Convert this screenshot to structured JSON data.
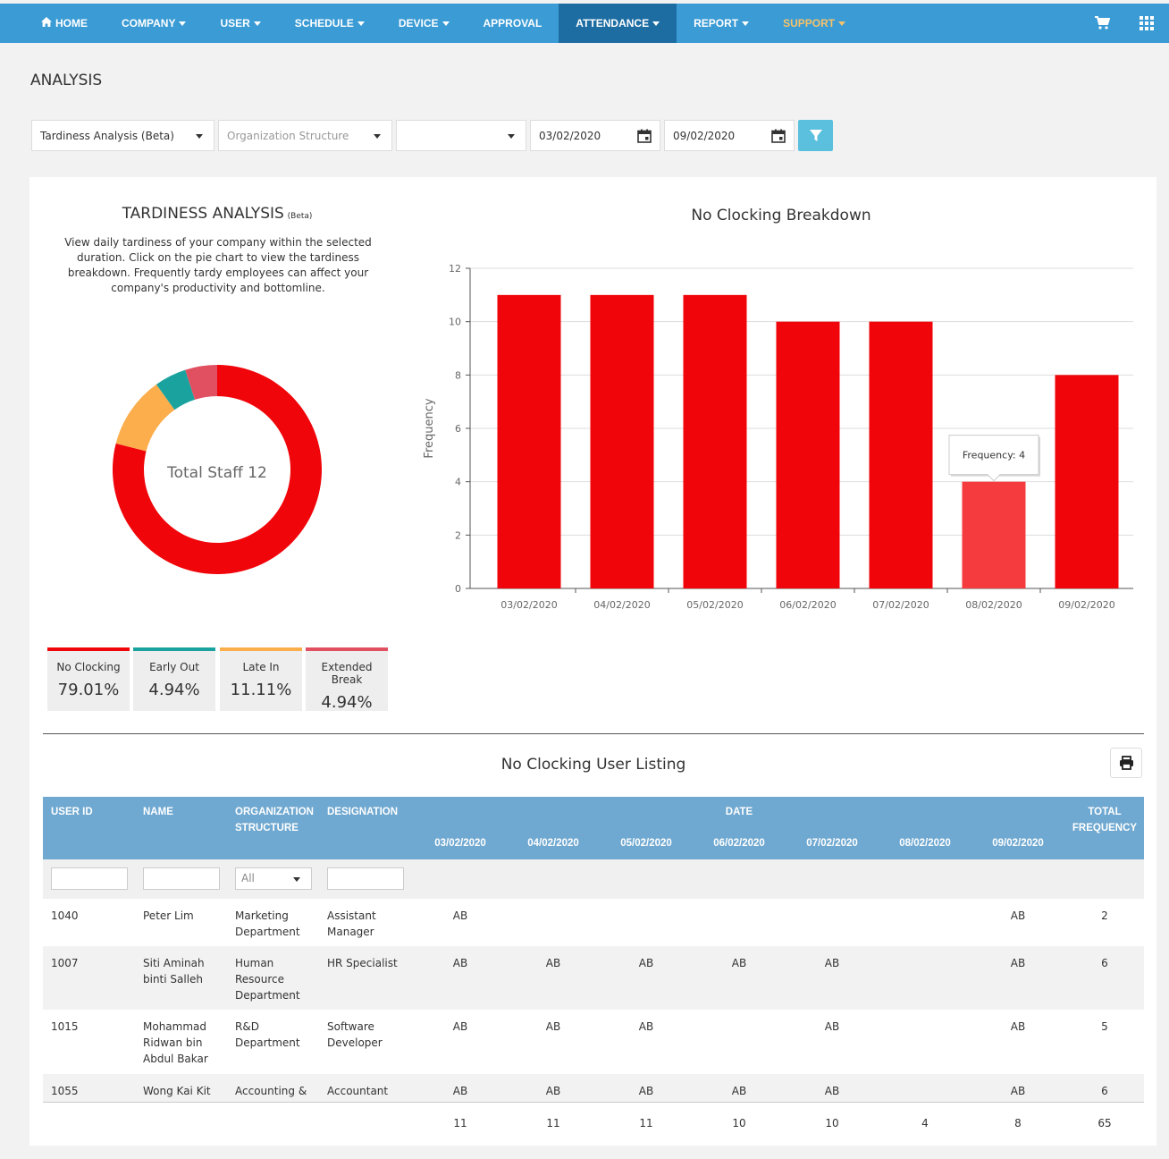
{
  "nav": {
    "items": [
      {
        "label": "HOME",
        "icon": "home-icon"
      },
      {
        "label": "COMPANY",
        "caret": true
      },
      {
        "label": "USER",
        "caret": true
      },
      {
        "label": "SCHEDULE",
        "caret": true
      },
      {
        "label": "DEVICE",
        "caret": true
      },
      {
        "label": "APPROVAL",
        "caret": false
      },
      {
        "label": "ATTENDANCE",
        "caret": true,
        "active": true
      },
      {
        "label": "REPORT",
        "caret": true
      },
      {
        "label": "SUPPORT",
        "caret": true
      }
    ],
    "right_icons": [
      "cart-icon",
      "apps-grid-icon"
    ]
  },
  "page_title": "ANALYSIS",
  "filters": {
    "analysis_type": "Tardiness Analysis (Beta)",
    "org_structure_placeholder": "Organization Structure",
    "third_select": "",
    "date_from": "03/02/2020",
    "date_to": "09/02/2020"
  },
  "tardiness": {
    "title": "TARDINESS ANALYSIS",
    "beta": "(Beta)",
    "description": "View daily tardiness of your company within the selected duration. Click on the pie chart to view the tardiness breakdown. Frequently tardy employees can affect your company's productivity and bottomline.",
    "donut_center": "Total Staff 12",
    "legend": [
      {
        "label": "No Clocking",
        "pct": "79.01%",
        "color": "#f0050a"
      },
      {
        "label": "Early Out",
        "pct": "4.94%",
        "color": "#1aa39e"
      },
      {
        "label": "Late In",
        "pct": "11.11%",
        "color": "#fbae4b"
      },
      {
        "label": "Extended Break",
        "pct": "4.94%",
        "color": "#e05060"
      }
    ]
  },
  "chart_data": [
    {
      "type": "pie",
      "categories": [
        "No Clocking",
        "Late In",
        "Early Out",
        "Extended Break"
      ],
      "values": [
        79.01,
        11.11,
        4.94,
        4.94
      ],
      "colors": [
        "#f0050a",
        "#fbae4b",
        "#1aa39e",
        "#e05060"
      ],
      "center_label": "Total Staff 12"
    },
    {
      "type": "bar",
      "title": "No Clocking Breakdown",
      "categories": [
        "03/02/2020",
        "04/02/2020",
        "05/02/2020",
        "06/02/2020",
        "07/02/2020",
        "08/02/2020",
        "09/02/2020"
      ],
      "values": [
        11,
        11,
        11,
        10,
        10,
        4,
        8
      ],
      "ylabel": "Frequency",
      "xlabel": "",
      "ylim": [
        0,
        12
      ],
      "yticks": [
        0,
        2,
        4,
        6,
        8,
        10,
        12
      ],
      "grid": true,
      "color": "#f0050a",
      "highlight_color": "#f53b3e",
      "highlight_index": 5,
      "tooltip": "Frequency: 4"
    }
  ],
  "listing": {
    "title": "No Clocking User Listing",
    "headers": {
      "user_id": "USER ID",
      "name": "NAME",
      "org": "ORGANIZATION STRUCTURE",
      "designation": "DESIGNATION",
      "date": "DATE",
      "total": "TOTAL FREQUENCY"
    },
    "dates": [
      "03/02/2020",
      "04/02/2020",
      "05/02/2020",
      "06/02/2020",
      "07/02/2020",
      "08/02/2020",
      "09/02/2020"
    ],
    "org_filter": "All",
    "rows": [
      {
        "id": "1040",
        "name": "Peter Lim",
        "org": "Marketing Department",
        "designation": "Assistant Manager",
        "marks": [
          "AB",
          "",
          "",
          "",
          "",
          "",
          "AB"
        ],
        "total": "2"
      },
      {
        "id": "1007",
        "name": "Siti Aminah binti Salleh",
        "org": "Human Resource Department",
        "designation": "HR Specialist",
        "marks": [
          "AB",
          "AB",
          "AB",
          "AB",
          "AB",
          "",
          "AB"
        ],
        "total": "6"
      },
      {
        "id": "1015",
        "name": "Mohammad Ridwan bin Abdul Bakar",
        "org": "R&D Department",
        "designation": "Software Developer",
        "marks": [
          "AB",
          "AB",
          "AB",
          "",
          "AB",
          "",
          "AB"
        ],
        "total": "5"
      },
      {
        "id": "1055",
        "name": "Wong Kai Kit",
        "org": "Accounting &",
        "designation": "Accountant",
        "marks": [
          "AB",
          "AB",
          "AB",
          "AB",
          "AB",
          "",
          "AB"
        ],
        "total": "6"
      }
    ],
    "totals": [
      "11",
      "11",
      "11",
      "10",
      "10",
      "4",
      "8"
    ],
    "grand_total": "65"
  }
}
